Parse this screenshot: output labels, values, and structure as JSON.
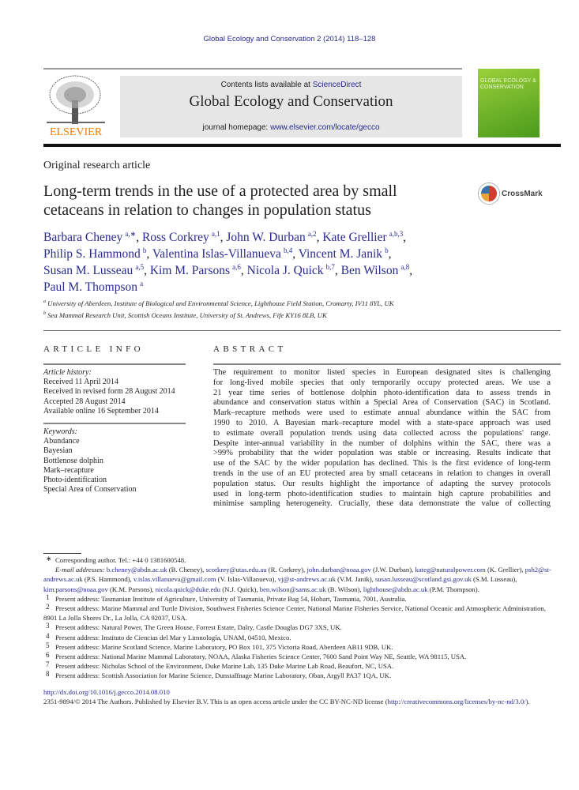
{
  "journal_ref": "Global Ecology and Conservation 2 (2014) 118–128",
  "header": {
    "contents_prefix": "Contents lists available at ",
    "contents_link": "ScienceDirect",
    "journal_title": "Global Ecology and Conservation",
    "homepage_prefix": "journal homepage: ",
    "homepage_link": "www.elsevier.com/locate/gecco",
    "publisher_logo": "ELSEVIER",
    "cover_text": "GLOBAL ECOLOGY & CONSERVATION"
  },
  "article_type": "Original research article",
  "title_lines": [
    "Long-term trends in the use of a protected area by small",
    "cetaceans in relation to changes in population status"
  ],
  "crossmark": "CrossMark",
  "authors": [
    [
      {
        "name": "Barbara Cheney",
        "sup": "a,∗",
        "sep": ", "
      },
      {
        "name": "Ross Corkrey",
        "sup": "a,1",
        "sep": ", "
      },
      {
        "name": "John W. Durban",
        "sup": "a,2",
        "sep": ", "
      },
      {
        "name": "Kate Grellier",
        "sup": "a,b,3",
        "sep": ","
      }
    ],
    [
      {
        "name": "Philip S. Hammond",
        "sup": "b",
        "sep": ", "
      },
      {
        "name": "Valentina Islas-Villanueva",
        "sup": "b,4",
        "sep": ", "
      },
      {
        "name": "Vincent M. Janik",
        "sup": "b",
        "sep": ","
      }
    ],
    [
      {
        "name": "Susan M. Lusseau",
        "sup": "a,5",
        "sep": ", "
      },
      {
        "name": "Kim M. Parsons",
        "sup": "a,6",
        "sep": ", "
      },
      {
        "name": "Nicola J. Quick",
        "sup": "b,7",
        "sep": ", "
      },
      {
        "name": "Ben Wilson",
        "sup": "a,8",
        "sep": ","
      }
    ],
    [
      {
        "name": "Paul M. Thompson",
        "sup": "a",
        "sep": ""
      }
    ]
  ],
  "affiliations": [
    {
      "mark": "a",
      "text": "University of Aberdeen, Institute of Biological and Environmental Science, Lighthouse Field Station, Cromarty, IV11 8YL, UK"
    },
    {
      "mark": "b",
      "text": "Sea Mammal Research Unit, Scottish Oceans Institute, University of St. Andrews, Fife KY16 8LB, UK"
    }
  ],
  "article_info": {
    "heading": "ARTICLE INFO",
    "history_label": "Article history:",
    "history": [
      "Received 11 April 2014",
      "Received in revised form 28 August 2014",
      "Accepted 28 August 2014",
      "Available online 16 September 2014"
    ],
    "keywords_label": "Keywords:",
    "keywords": [
      "Abundance",
      "Bayesian",
      "Bottlenose dolphin",
      "Mark–recapture",
      "Photo-identification",
      "Special Area of Conservation"
    ]
  },
  "abstract": {
    "heading": "ABSTRACT",
    "lines": [
      "The requirement to monitor listed species in European designated sites is challenging",
      "for long-lived mobile species that only temporarily occupy protected areas. We use a",
      "21 year time series of bottlenose dolphin photo-identification data to assess trends in",
      "abundance and conservation status within a Special Area of Conservation (SAC) in Scotland.",
      "Mark–recapture methods were used to estimate annual abundance within the SAC from",
      "1990 to 2010. A Bayesian mark–recapture model with a state-space approach was used",
      "to estimate overall population trends using data collected across the populations' range.",
      "Despite inter-annual variability in the number of dolphins within the SAC, there was a",
      ">99% probability that the wider population was stable or increasing. Results indicate that",
      "use of the SAC by the wider population has declined. This is the first evidence of long-term",
      "trends in the use of an EU protected area by small cetaceans in relation to changes in overall",
      "population status. Our results highlight the importance of adapting the survey protocols",
      "used in long-term photo-identification studies to maintain high capture probabilities and",
      "minimise sampling heterogeneity. Crucially, these data demonstrate the value of collecting"
    ]
  },
  "footnotes": {
    "corresponding": {
      "mark": "∗",
      "text": "Corresponding author. Tel.: +44 0 1381600548."
    },
    "email_label": "E-mail addresses:",
    "emails": [
      {
        "email": "b.cheney@abdn.ac.uk",
        "who": "(B. Cheney)"
      },
      {
        "email": "scorkrey@utas.edu.au",
        "who": "(R. Corkrey)"
      },
      {
        "email": "john.durban@noaa.gov",
        "who": "(J.W. Durban)"
      },
      {
        "email": "kateg@naturalpower.com",
        "who": "(K. Grellier)"
      },
      {
        "email": "psh2@st-andrews.ac.uk",
        "who": "(P.S. Hammond)"
      },
      {
        "email": "v.islas.villanueva@gmail.com",
        "who": "(V. Islas-Villanueva)"
      },
      {
        "email": "vj@st-andrews.ac.uk",
        "who": "(V.M. Janik)"
      },
      {
        "email": "susan.lusseau@scotland.gsi.gov.uk",
        "who": "(S.M. Lusseau)"
      },
      {
        "email": "kim.parsons@noaa.gov",
        "who": "(K.M. Parsons)"
      },
      {
        "email": "nicola.quick@duke.edu",
        "who": "(N.J. Quick)"
      },
      {
        "email": "ben.wilson@sams.ac.uk",
        "who": "(B. Wilson)"
      },
      {
        "email": "lighthouse@abdn.ac.uk",
        "who": "(P.M. Thompson)."
      }
    ],
    "addresses": [
      {
        "mark": "1",
        "text": "Present address: Tasmanian Institute of Agriculture, University of Tasmania, Private Bag 54, Hobart, Tasmania, 7001, Australia."
      },
      {
        "mark": "2",
        "text": "Present address: Marine Mammal and Turtle Division, Southwest Fisheries Science Center, National Marine Fisheries Service, National Oceanic and Atmospheric Administration, 8901 La Jolla Shores Dr., La Jolla, CA 92037, USA."
      },
      {
        "mark": "3",
        "text": "Present address: Natural Power, The Green House, Forrest Estate, Dalry, Castle Douglas DG7 3XS, UK."
      },
      {
        "mark": "4",
        "text": "Present address: Instituto de Ciencias del Mar y Limnología, UNAM, 04510, Mexico."
      },
      {
        "mark": "5",
        "text": "Present address: Marine Scotland Science, Marine Laboratory, PO Box 101, 375 Victoria Road, Aberdeen AB11 9DB, UK."
      },
      {
        "mark": "6",
        "text": "Present address: National Marine Mammal Laboratory, NOAA, Alaska Fisheries Science Center, 7600 Sand Point Way NE, Seattle, WA 98115, USA."
      },
      {
        "mark": "7",
        "text": "Present address: Nicholas School of the Environment, Duke Marine Lab, 135 Duke Marine Lab Road, Beaufort, NC, USA."
      },
      {
        "mark": "8",
        "text": "Present address: Scottish Association for Marine Science, Dunstaffnage Marine Laboratory, Oban, Argyll PA37 1QA, UK."
      }
    ]
  },
  "doi": "http://dx.doi.org/10.1016/j.gecco.2014.08.010",
  "copyright_prefix": "2351-9894/© 2014 The Authors. Published by Elsevier B.V. This is an open access article under the CC BY-NC-ND license (",
  "license_link": "http://creativecommons.org/licenses/by-nc-nd/3.0/",
  "copyright_suffix": ").",
  "colors": {
    "link": "#2a2a8f",
    "elsevier_orange": "#f07c00",
    "header_box": "#e6e6e6",
    "cover_green": "#7dbf2e"
  }
}
